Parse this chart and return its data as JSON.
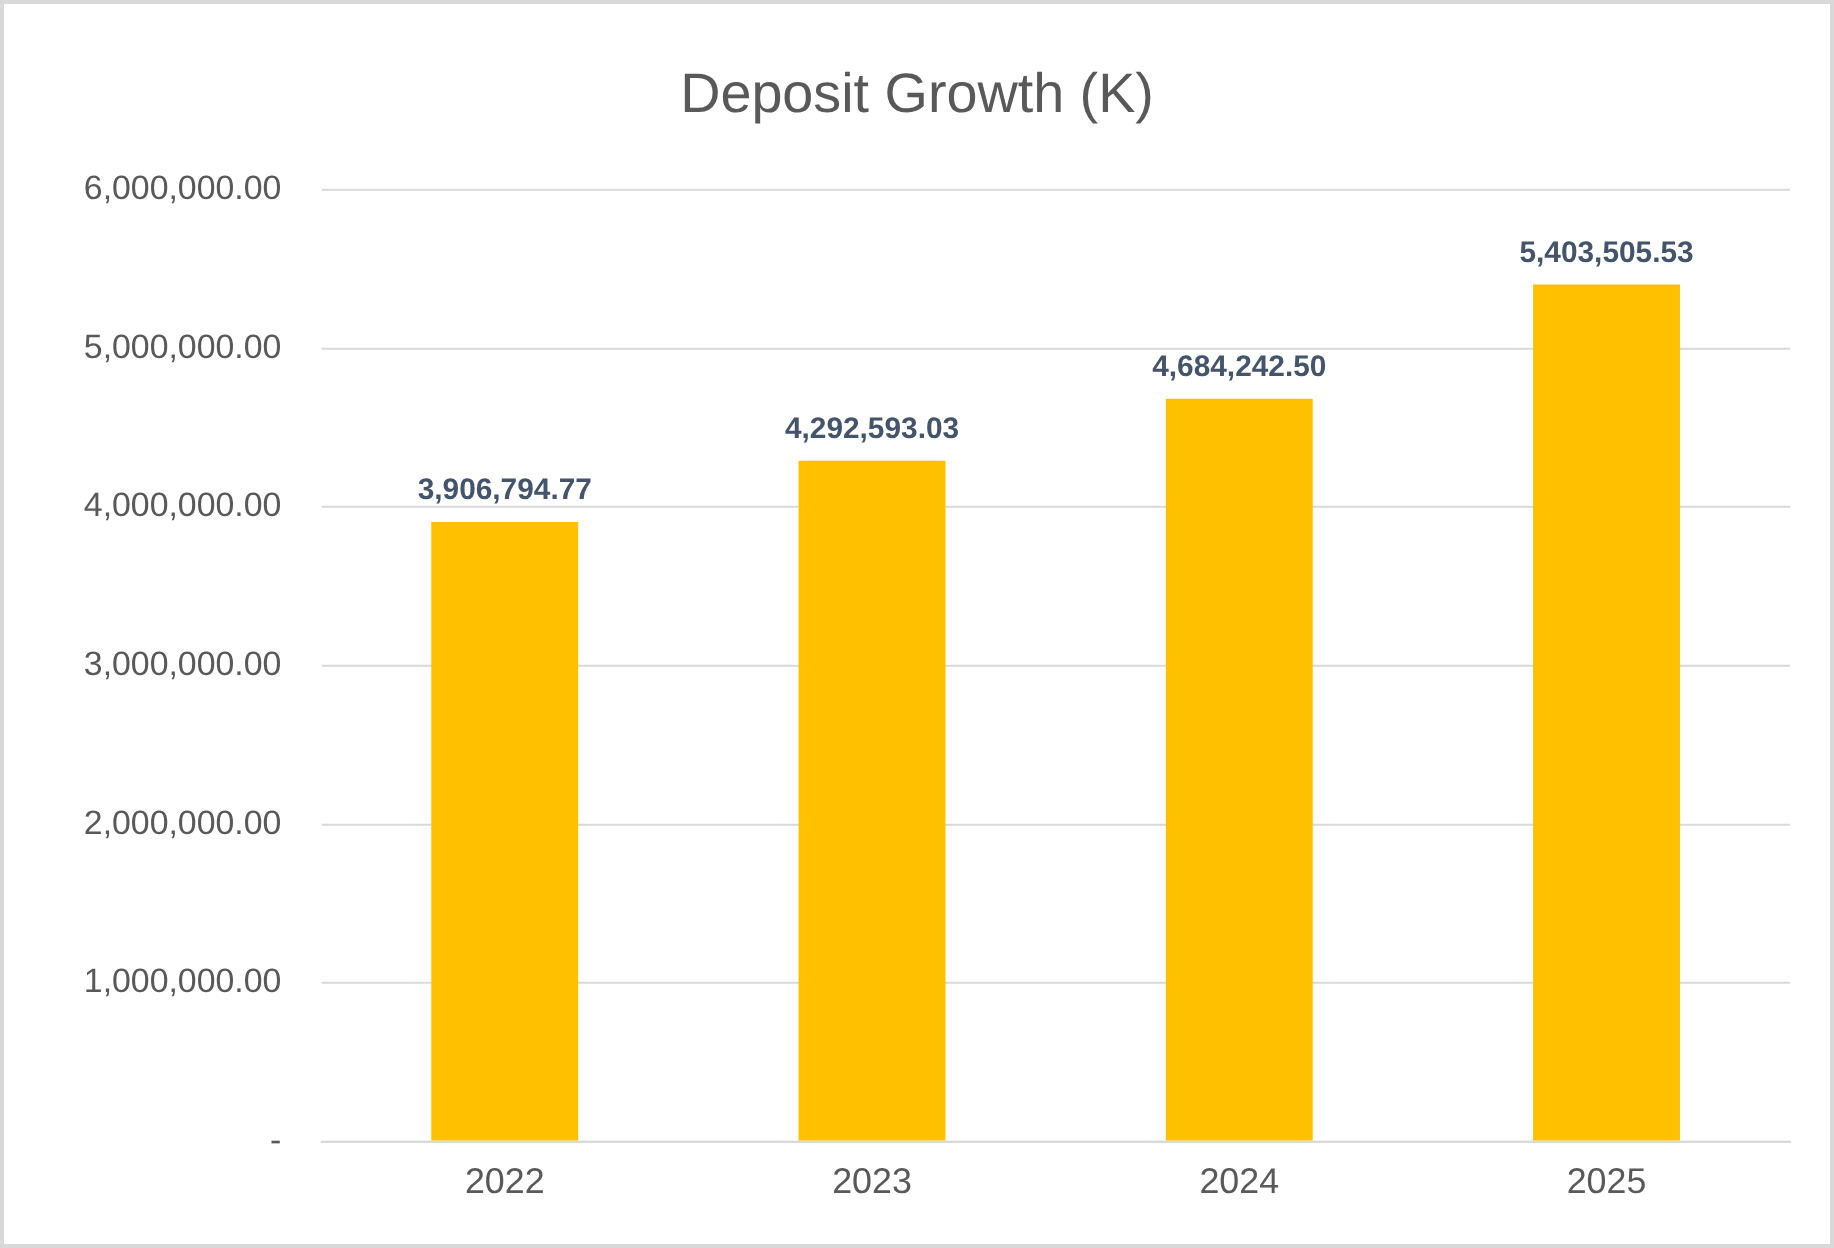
{
  "chart_data": {
    "type": "bar",
    "title": "Deposit Growth (K)",
    "categories": [
      "2022",
      "2023",
      "2024",
      "2025"
    ],
    "values": [
      3906794.77,
      4292593.03,
      4684242.5,
      5403505.53
    ],
    "value_labels": [
      "3,906,794.77",
      "4,292,593.03",
      "4,684,242.50",
      "5,403,505.53"
    ],
    "color": "#ffc000",
    "ylim": [
      0,
      6000000
    ],
    "yticks": [
      {
        "value": 0,
        "label": "-"
      },
      {
        "value": 1000000,
        "label": "1,000,000.00"
      },
      {
        "value": 2000000,
        "label": "2,000,000.00"
      },
      {
        "value": 3000000,
        "label": "3,000,000.00"
      },
      {
        "value": 4000000,
        "label": "4,000,000.00"
      },
      {
        "value": 5000000,
        "label": "5,000,000.00"
      },
      {
        "value": 6000000,
        "label": "6,000,000.00"
      }
    ],
    "grid": "y"
  }
}
